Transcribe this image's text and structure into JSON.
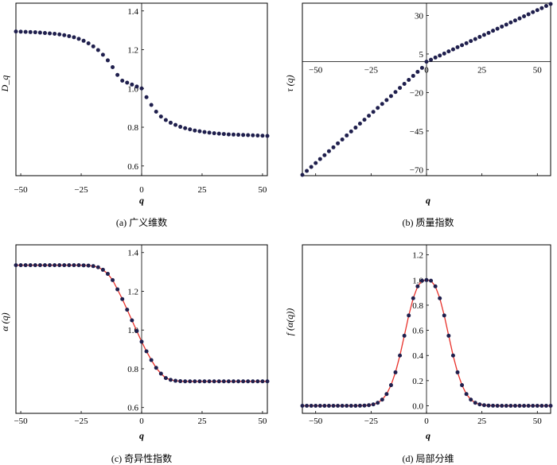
{
  "chart_data": [
    {
      "id": "a",
      "type": "scatter",
      "caption": "(a) 广义维数",
      "xlabel": "q",
      "ylabel": "D_q",
      "xlim": [
        -52,
        52
      ],
      "ylim": [
        0.55,
        1.44
      ],
      "xticks": [
        -50,
        -25,
        0,
        25,
        50
      ],
      "xtick_labels": [
        "−50",
        "−25",
        "0",
        "25",
        "50"
      ],
      "yticks": [
        0.6,
        0.8,
        1.0,
        1.2,
        1.4
      ],
      "ytick_labels": [
        "0.6",
        "0.8",
        "1.0",
        "1.2",
        "1.4"
      ],
      "fit_line": false,
      "series": [
        {
          "marker_color": "#1f1f4d",
          "x": [
            -52,
            -50,
            -48,
            -46,
            -44,
            -42,
            -40,
            -38,
            -36,
            -34,
            -32,
            -30,
            -28,
            -26,
            -24,
            -22,
            -20,
            -18,
            -16,
            -14,
            -12,
            -10,
            -8,
            -6,
            -4,
            -2,
            0,
            2,
            4,
            6,
            8,
            10,
            12,
            14,
            16,
            18,
            20,
            22,
            24,
            26,
            28,
            30,
            32,
            34,
            36,
            38,
            40,
            42,
            44,
            46,
            48,
            50,
            52
          ],
          "y": [
            1.294,
            1.293,
            1.292,
            1.291,
            1.29,
            1.288,
            1.286,
            1.284,
            1.282,
            1.279,
            1.275,
            1.27,
            1.264,
            1.256,
            1.246,
            1.233,
            1.217,
            1.198,
            1.174,
            1.145,
            1.11,
            1.07,
            1.04,
            1.03,
            1.02,
            1.01,
            1.0,
            0.955,
            0.915,
            0.88,
            0.855,
            0.837,
            0.823,
            0.812,
            0.802,
            0.795,
            0.789,
            0.783,
            0.779,
            0.775,
            0.772,
            0.769,
            0.767,
            0.765,
            0.763,
            0.762,
            0.761,
            0.76,
            0.759,
            0.758,
            0.757,
            0.756,
            0.755
          ]
        }
      ]
    },
    {
      "id": "b",
      "type": "scatter",
      "caption": "(b) 质量指数",
      "xlabel": "q",
      "ylabel": "τ (q)",
      "xlim": [
        -56,
        56
      ],
      "ylim": [
        -74,
        38
      ],
      "xticks": [
        -50,
        -25,
        0,
        25,
        50
      ],
      "xtick_labels": [
        "−50",
        "−25",
        "0",
        "25",
        "50"
      ],
      "yticks": [
        -70,
        -45,
        -20,
        5,
        30
      ],
      "ytick_labels": [
        "−70",
        "−45",
        "−20",
        "5",
        "30"
      ],
      "fit_line": false,
      "series": [
        {
          "marker_color": "#1f1f4d",
          "x": [
            -56,
            -54,
            -52,
            -50,
            -48,
            -46,
            -44,
            -42,
            -40,
            -38,
            -36,
            -34,
            -32,
            -30,
            -28,
            -26,
            -24,
            -22,
            -20,
            -18,
            -16,
            -14,
            -12,
            -10,
            -8,
            -6,
            -4,
            -2,
            0,
            2,
            4,
            6,
            8,
            10,
            12,
            14,
            16,
            18,
            20,
            22,
            24,
            26,
            28,
            30,
            32,
            34,
            36,
            38,
            40,
            42,
            44,
            46,
            48,
            50,
            52,
            54,
            56
          ],
          "y": [
            -73.5,
            -70.9,
            -68.3,
            -65.8,
            -63.2,
            -60.7,
            -58.1,
            -55.6,
            -53.0,
            -50.5,
            -47.9,
            -45.3,
            -42.8,
            -40.2,
            -37.7,
            -35.1,
            -32.6,
            -30.0,
            -27.4,
            -24.9,
            -22.3,
            -19.7,
            -17.0,
            -14.4,
            -11.8,
            -9.2,
            -6.6,
            -4.0,
            0.0,
            1.3,
            2.7,
            4.0,
            5.3,
            6.7,
            8.0,
            9.4,
            10.7,
            12.0,
            13.4,
            14.7,
            16.1,
            17.4,
            18.7,
            20.1,
            21.4,
            22.8,
            24.1,
            25.5,
            26.8,
            28.1,
            29.5,
            30.8,
            32.2,
            33.5,
            34.8,
            36.2,
            37.5
          ]
        }
      ]
    },
    {
      "id": "c",
      "type": "scatter",
      "caption": "(c) 奇异性指数",
      "xlabel": "q",
      "ylabel": "α (q)",
      "xlim": [
        -52,
        52
      ],
      "ylim": [
        0.57,
        1.44
      ],
      "xticks": [
        -50,
        -25,
        0,
        25,
        50
      ],
      "xtick_labels": [
        "−50",
        "−25",
        "0",
        "25",
        "50"
      ],
      "yticks": [
        0.6,
        0.8,
        1.0,
        1.2,
        1.4
      ],
      "ytick_labels": [
        "0.6",
        "0.8",
        "1.0",
        "1.2",
        "1.4"
      ],
      "fit_line": true,
      "line_color": "#e8302a",
      "series": [
        {
          "marker_color": "#1f1f4d",
          "x": [
            -52,
            -50,
            -48,
            -46,
            -44,
            -42,
            -40,
            -38,
            -36,
            -34,
            -32,
            -30,
            -28,
            -26,
            -24,
            -22,
            -20,
            -18,
            -16,
            -14,
            -12,
            -10,
            -8,
            -6,
            -4,
            -2,
            0,
            2,
            4,
            6,
            8,
            10,
            12,
            14,
            16,
            18,
            20,
            22,
            24,
            26,
            28,
            30,
            32,
            34,
            36,
            38,
            40,
            42,
            44,
            46,
            48,
            50,
            52
          ],
          "y": [
            1.335,
            1.335,
            1.335,
            1.335,
            1.335,
            1.335,
            1.335,
            1.335,
            1.335,
            1.335,
            1.335,
            1.335,
            1.335,
            1.335,
            1.334,
            1.333,
            1.33,
            1.324,
            1.311,
            1.29,
            1.258,
            1.21,
            1.16,
            1.105,
            1.05,
            0.995,
            0.94,
            0.89,
            0.845,
            0.805,
            0.775,
            0.752,
            0.743,
            0.738,
            0.736,
            0.735,
            0.735,
            0.735,
            0.735,
            0.735,
            0.735,
            0.735,
            0.735,
            0.735,
            0.735,
            0.735,
            0.735,
            0.735,
            0.735,
            0.735,
            0.735,
            0.735,
            0.735
          ]
        }
      ]
    },
    {
      "id": "d",
      "type": "scatter",
      "caption": "(d) 局部分维",
      "xlabel": "q",
      "ylabel": "f (α(q))",
      "xlim": [
        -56,
        56
      ],
      "ylim": [
        -0.06,
        1.28
      ],
      "xticks": [
        -50,
        -25,
        0,
        25,
        50
      ],
      "xtick_labels": [
        "−50",
        "−25",
        "0",
        "25",
        "50"
      ],
      "yticks": [
        0.0,
        0.2,
        0.4,
        0.6,
        0.8,
        1.0,
        1.2
      ],
      "ytick_labels": [
        "0.0",
        "0.2",
        "0.4",
        "0.6",
        "0.8",
        "1.0",
        "1.2"
      ],
      "fit_line": true,
      "line_color": "#e8302a",
      "series": [
        {
          "marker_color": "#1f1f4d",
          "x": [
            -56,
            -54,
            -52,
            -50,
            -48,
            -46,
            -44,
            -42,
            -40,
            -38,
            -36,
            -34,
            -32,
            -30,
            -28,
            -26,
            -24,
            -22,
            -20,
            -18,
            -16,
            -14,
            -12,
            -10,
            -8,
            -6,
            -4,
            -2,
            0,
            2,
            4,
            6,
            8,
            10,
            12,
            14,
            16,
            18,
            20,
            22,
            24,
            26,
            28,
            30,
            32,
            34,
            36,
            38,
            40,
            42,
            44,
            46,
            48,
            50,
            52,
            54,
            56
          ],
          "y": [
            0.0,
            0.0,
            0.0,
            0.0,
            0.0,
            0.0,
            0.0,
            0.0,
            0.0,
            0.0,
            0.0,
            0.0,
            0.0,
            0.001,
            0.002,
            0.005,
            0.011,
            0.024,
            0.049,
            0.093,
            0.164,
            0.266,
            0.4,
            0.557,
            0.718,
            0.855,
            0.95,
            0.995,
            1.0,
            0.995,
            0.95,
            0.855,
            0.718,
            0.557,
            0.4,
            0.266,
            0.164,
            0.093,
            0.049,
            0.024,
            0.011,
            0.005,
            0.002,
            0.001,
            0.0,
            0.0,
            0.0,
            0.0,
            0.0,
            0.0,
            0.0,
            0.0,
            0.0,
            0.0,
            0.0,
            0.0,
            0.0
          ]
        }
      ]
    }
  ]
}
